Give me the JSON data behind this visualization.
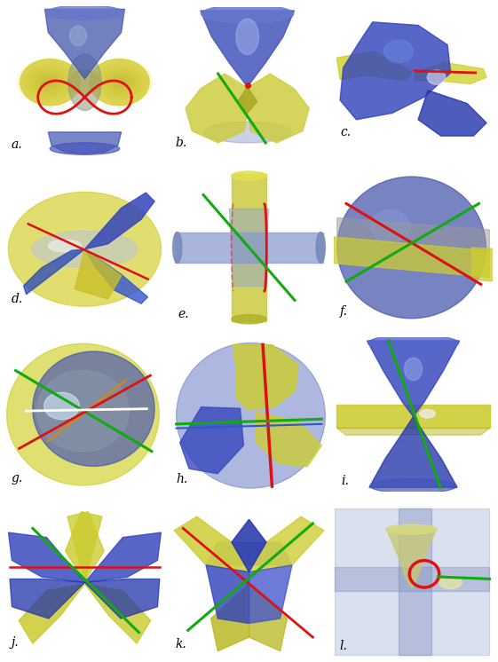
{
  "labels": [
    "a.",
    "b.",
    "c.",
    "d.",
    "e.",
    "f.",
    "g.",
    "h.",
    "i.",
    "j.",
    "k.",
    "l."
  ],
  "grid_rows": 4,
  "grid_cols": 3,
  "figsize": [
    5.61,
    7.46
  ],
  "dpi": 100,
  "bg_color": "#ffffff",
  "label_fontsize": 10,
  "label_color": "#000000"
}
